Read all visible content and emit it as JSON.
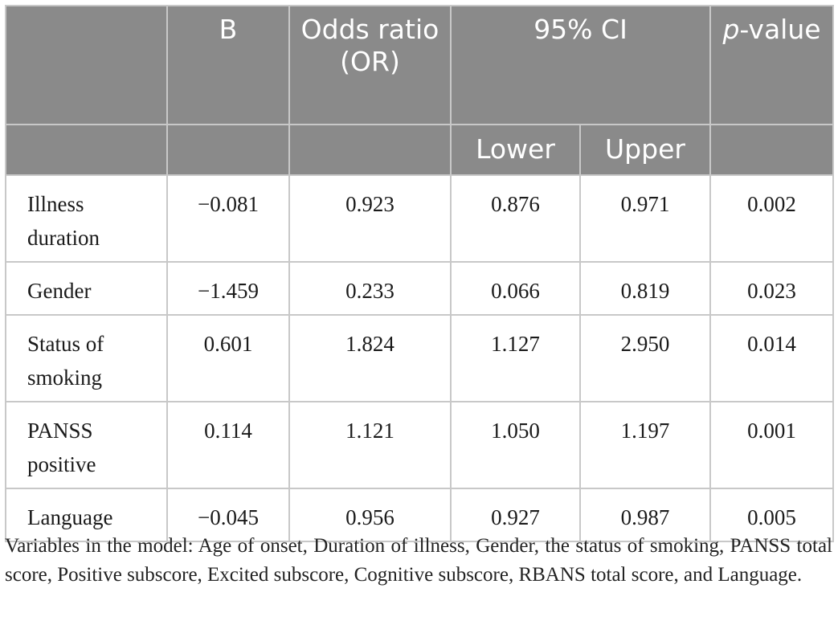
{
  "table": {
    "header": {
      "b": "B",
      "or": "Odds ratio (OR)",
      "ci": "95% CI",
      "p_italic": "p",
      "p_rest": "-value",
      "lower": "Lower",
      "upper": "Upper"
    },
    "rows": [
      {
        "label": "Illness duration",
        "b": "−0.081",
        "or": "0.923",
        "lower": "0.876",
        "upper": "0.971",
        "p": "0.002"
      },
      {
        "label": "Gender",
        "b": "−1.459",
        "or": "0.233",
        "lower": "0.066",
        "upper": "0.819",
        "p": "0.023"
      },
      {
        "label": "Status of smoking",
        "b": "0.601",
        "or": "1.824",
        "lower": "1.127",
        "upper": "2.950",
        "p": "0.014"
      },
      {
        "label": "PANSS positive",
        "b": "0.114",
        "or": "1.121",
        "lower": "1.050",
        "upper": "1.197",
        "p": "0.001"
      },
      {
        "label": "Language",
        "b": "−0.045",
        "or": "0.956",
        "lower": "0.927",
        "upper": "0.987",
        "p": "0.005"
      }
    ]
  },
  "footnote": "Variables in the model: Age of onset, Duration of illness, Gender, the status of smoking, PANSS total score, Positive subscore, Excited subscore, Cognitive subscore, RBANS total score, and Language."
}
